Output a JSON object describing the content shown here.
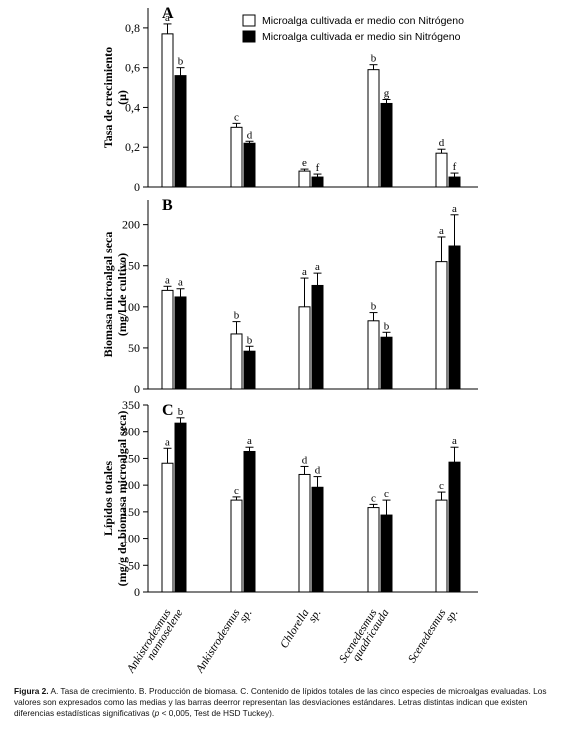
{
  "legend": {
    "with_n": "Microalga cultivada er medio con Nitrógeno",
    "without_n": "Microalga cultivada er medio sin Nitrógeno"
  },
  "species": [
    {
      "line1": "Ankistrodesmus",
      "line2": "nannoselene"
    },
    {
      "line1": "Ankistrodesmus",
      "line2": "sp."
    },
    {
      "line1": "Chlorella",
      "line2": "sp."
    },
    {
      "line1": "Scenedesmus",
      "line2": "quadricauda"
    },
    {
      "line1": "Scenedesmus",
      "line2": "sp."
    }
  ],
  "chart_data": [
    {
      "type": "bar",
      "panel": "A",
      "ylabel_line1": "Tasa de crecimiento",
      "ylabel_line2": "(μ)",
      "ylim": [
        0,
        0.9
      ],
      "yticks": [
        0,
        0.2,
        0.4,
        0.6,
        0.8
      ],
      "ytick_labels": [
        "0",
        "0,2",
        "0,4",
        "0,6",
        "0,8"
      ],
      "series": [
        {
          "name": "Microalga cultivada er medio con Nitrógeno",
          "values": [
            0.77,
            0.3,
            0.08,
            0.59,
            0.17
          ],
          "errors": [
            0.05,
            0.02,
            0.01,
            0.025,
            0.02
          ],
          "letters": [
            "a",
            "c",
            "e",
            "b",
            "d"
          ]
        },
        {
          "name": "Microalga cultivada er medio sin Nitrógeno",
          "values": [
            0.56,
            0.22,
            0.05,
            0.42,
            0.05
          ],
          "errors": [
            0.04,
            0.01,
            0.015,
            0.02,
            0.02
          ],
          "letters": [
            "b",
            "d",
            "f",
            "g",
            "f"
          ]
        }
      ]
    },
    {
      "type": "bar",
      "panel": "B",
      "ylabel_line1": "Biomasa microalgal seca",
      "ylabel_line2": "(mg/l de cultivo)",
      "ylim": [
        0,
        230
      ],
      "yticks": [
        0,
        50,
        100,
        150,
        200
      ],
      "ytick_labels": [
        "0",
        "50",
        "100",
        "150",
        "200"
      ],
      "series": [
        {
          "name": "Microalga cultivada er medio con Nitrógeno",
          "values": [
            120,
            67,
            100,
            83,
            155
          ],
          "errors": [
            5,
            15,
            35,
            10,
            30
          ],
          "letters": [
            "a",
            "b",
            "a",
            "b",
            "a"
          ]
        },
        {
          "name": "Microalga cultivada er medio sin Nitrógeno",
          "values": [
            112,
            46,
            126,
            63,
            174
          ],
          "errors": [
            10,
            6,
            15,
            6,
            38
          ],
          "letters": [
            "a",
            "b",
            "a",
            "b",
            "a"
          ]
        }
      ]
    },
    {
      "type": "bar",
      "panel": "C",
      "ylabel_line1": "Lípidos totales",
      "ylabel_line2": "(mg/g de biomasa microalgal seca)",
      "ylim": [
        0,
        350
      ],
      "yticks": [
        0,
        50,
        100,
        150,
        200,
        250,
        300,
        350
      ],
      "ytick_labels": [
        "0",
        "50",
        "100",
        "150",
        "200",
        "250",
        "300",
        "350"
      ],
      "series": [
        {
          "name": "Microalga cultivada er medio con Nitrógeno",
          "values": [
            241,
            172,
            220,
            158,
            172
          ],
          "errors": [
            28,
            6,
            15,
            6,
            15
          ],
          "letters": [
            "a",
            "c",
            "d",
            "c",
            "c"
          ]
        },
        {
          "name": "Microalga cultivada er medio sin Nitrógeno",
          "values": [
            316,
            263,
            196,
            144,
            243
          ],
          "errors": [
            10,
            8,
            20,
            28,
            28
          ],
          "letters": [
            "b",
            "a",
            "d",
            "c",
            "a"
          ]
        }
      ]
    }
  ],
  "caption": {
    "label": "Figura 2.",
    "text": "A. Tasa de crecimiento. B. Producción de biomasa. C. Contenido de lípidos totales de las cinco especies de microalgas evaluadas. Los valores son expresados como las medias y las barras deerror representan las desviaciones estándares. Letras distintas indican que existen diferencias estadísticas significativas (",
    "p_symbol": "p",
    "text_end": " < 0,005, Test de HSD Tuckey)."
  }
}
